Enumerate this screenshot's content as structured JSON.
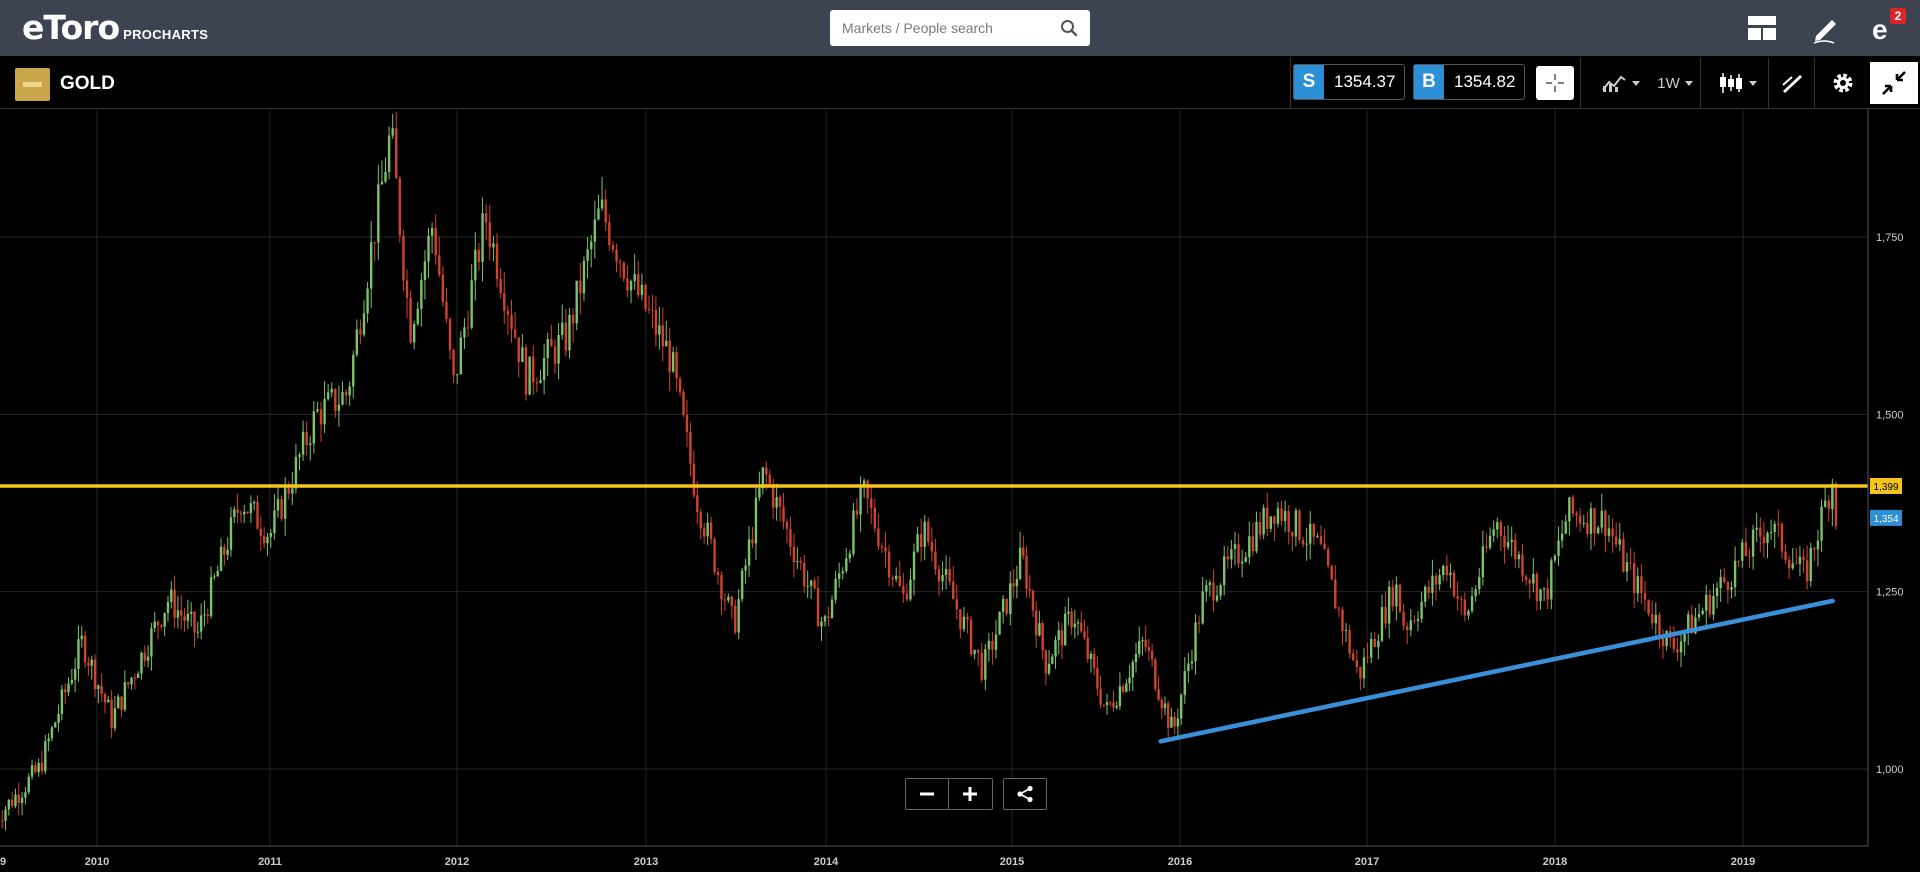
{
  "header": {
    "logo_text": "eToro",
    "logo_sub": "PROCHARTS",
    "search_placeholder": "Markets / People search",
    "notification_count": "2"
  },
  "instrument": {
    "name": "GOLD",
    "sell_label": "S",
    "sell_price": "1354.37",
    "buy_label": "B",
    "buy_price": "1354.82",
    "period": "1W"
  },
  "colors": {
    "topbar": "#3e4351",
    "accent_blue": "#2d8fd5",
    "level_line": "#f5c518",
    "trend_line": "#3a8fd8",
    "candle_up": "#7cc26b",
    "candle_down": "#d0432c"
  },
  "chart_data": {
    "type": "candlestick",
    "instrument": "GOLD",
    "timeframe": "1W",
    "x_ticks": [
      "9",
      "2010",
      "2011",
      "2012",
      "2013",
      "2014",
      "2015",
      "2016",
      "2017",
      "2018",
      "2019"
    ],
    "y_ticks": [
      "1,000",
      "1,250",
      "1,500",
      "1,750"
    ],
    "y_range": [
      890,
      1930
    ],
    "grid": true,
    "horizontal_level": {
      "value": 1399,
      "label": "1,399"
    },
    "current_price": {
      "value": 1354,
      "label": "1,354"
    },
    "trend_line": {
      "from": {
        "date": "2015-11-20",
        "value": 1039
      },
      "to": {
        "date": "2019-06-24",
        "value": 1237
      }
    },
    "price_path": [
      [
        "2009-06-01",
        930
      ],
      [
        "2009-09-01",
        1000
      ],
      [
        "2009-12-01",
        1180
      ],
      [
        "2010-02-01",
        1070
      ],
      [
        "2010-06-01",
        1240
      ],
      [
        "2010-08-01",
        1190
      ],
      [
        "2010-11-01",
        1380
      ],
      [
        "2011-01-01",
        1330
      ],
      [
        "2011-04-01",
        1500
      ],
      [
        "2011-06-01",
        1530
      ],
      [
        "2011-08-25",
        1900
      ],
      [
        "2011-10-01",
        1620
      ],
      [
        "2011-11-15",
        1770
      ],
      [
        "2011-12-25",
        1540
      ],
      [
        "2012-02-25",
        1780
      ],
      [
        "2012-05-15",
        1550
      ],
      [
        "2012-08-01",
        1610
      ],
      [
        "2012-10-05",
        1790
      ],
      [
        "2012-12-01",
        1690
      ],
      [
        "2013-02-20",
        1580
      ],
      [
        "2013-04-15",
        1380
      ],
      [
        "2013-06-28",
        1200
      ],
      [
        "2013-08-28",
        1420
      ],
      [
        "2013-12-28",
        1200
      ],
      [
        "2014-03-15",
        1390
      ],
      [
        "2014-06-01",
        1240
      ],
      [
        "2014-07-10",
        1340
      ],
      [
        "2014-11-05",
        1140
      ],
      [
        "2015-01-22",
        1300
      ],
      [
        "2015-03-15",
        1150
      ],
      [
        "2015-05-15",
        1220
      ],
      [
        "2015-07-25",
        1080
      ],
      [
        "2015-10-15",
        1180
      ],
      [
        "2015-12-17",
        1050
      ],
      [
        "2016-02-15",
        1240
      ],
      [
        "2016-07-06",
        1370
      ],
      [
        "2016-10-01",
        1310
      ],
      [
        "2016-12-15",
        1130
      ],
      [
        "2017-02-25",
        1260
      ],
      [
        "2017-03-15",
        1200
      ],
      [
        "2017-06-06",
        1290
      ],
      [
        "2017-07-10",
        1210
      ],
      [
        "2017-09-08",
        1350
      ],
      [
        "2017-12-12",
        1240
      ],
      [
        "2018-01-25",
        1360
      ],
      [
        "2018-04-10",
        1350
      ],
      [
        "2018-05-15",
        1290
      ],
      [
        "2018-08-16",
        1170
      ],
      [
        "2018-10-20",
        1230
      ],
      [
        "2019-02-20",
        1345
      ],
      [
        "2019-05-01",
        1270
      ],
      [
        "2019-06-24",
        1410
      ],
      [
        "2019-07-01",
        1354
      ]
    ]
  }
}
